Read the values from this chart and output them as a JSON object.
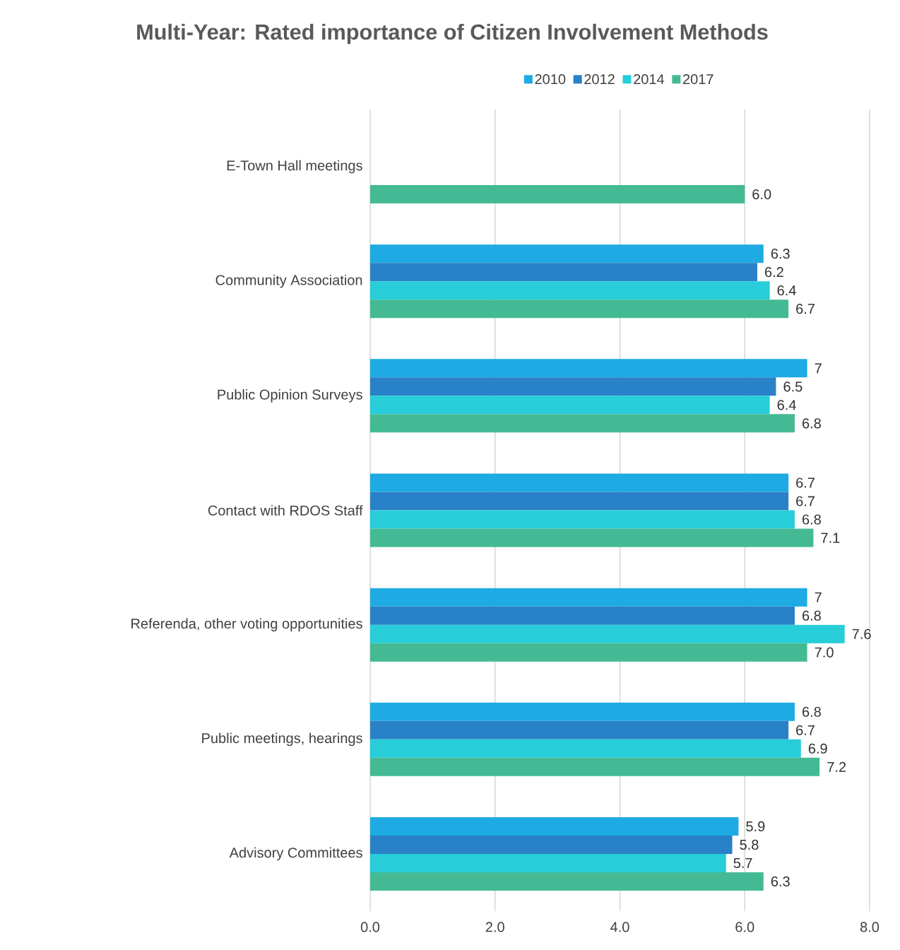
{
  "chart_data": {
    "type": "bar",
    "orientation": "horizontal",
    "title": "Multi-Year: Rated importance of  Citizen Involvement Methods",
    "categories": [
      "E-Town Hall meetings",
      "Community Association",
      "Public Opinion Surveys",
      "Contact with RDOS Staff",
      "Referenda, other voting opportunities",
      "Public meetings, hearings",
      "Advisory Committees"
    ],
    "series": [
      {
        "name": "2010",
        "color": "#1eaae2",
        "values": [
          null,
          6.3,
          7,
          6.7,
          7,
          6.8,
          5.9
        ],
        "value_labels": [
          null,
          "6.3",
          "7",
          "6.7",
          "7",
          "6.8",
          "5.9"
        ]
      },
      {
        "name": "2012",
        "color": "#2981c7",
        "values": [
          null,
          6.2,
          6.5,
          6.7,
          6.8,
          6.7,
          5.8
        ],
        "value_labels": [
          null,
          "6.2",
          "6.5",
          "6.7",
          "6.8",
          "6.7",
          "5.8"
        ]
      },
      {
        "name": "2014",
        "color": "#27cdd9",
        "values": [
          null,
          6.4,
          6.4,
          6.8,
          7.6,
          6.9,
          5.7
        ],
        "value_labels": [
          null,
          "6.4",
          "6.4",
          "6.8",
          "7.6",
          "6.9",
          "5.7"
        ]
      },
      {
        "name": "2017",
        "color": "#44ba94",
        "values": [
          6.0,
          6.7,
          6.8,
          7.1,
          7.0,
          7.2,
          6.3
        ],
        "value_labels": [
          "6.0",
          "6.7",
          "6.8",
          "7.1",
          "7.0",
          "7.2",
          "6.3"
        ]
      }
    ],
    "xlim": [
      0,
      8
    ],
    "xticks": [
      {
        "value": 0,
        "label": "0.0"
      },
      {
        "value": 2,
        "label": "2.0"
      },
      {
        "value": 4,
        "label": "4.0"
      },
      {
        "value": 6,
        "label": "6.0"
      },
      {
        "value": 8,
        "label": "8.0"
      }
    ],
    "grid": "x",
    "legend": "top"
  }
}
